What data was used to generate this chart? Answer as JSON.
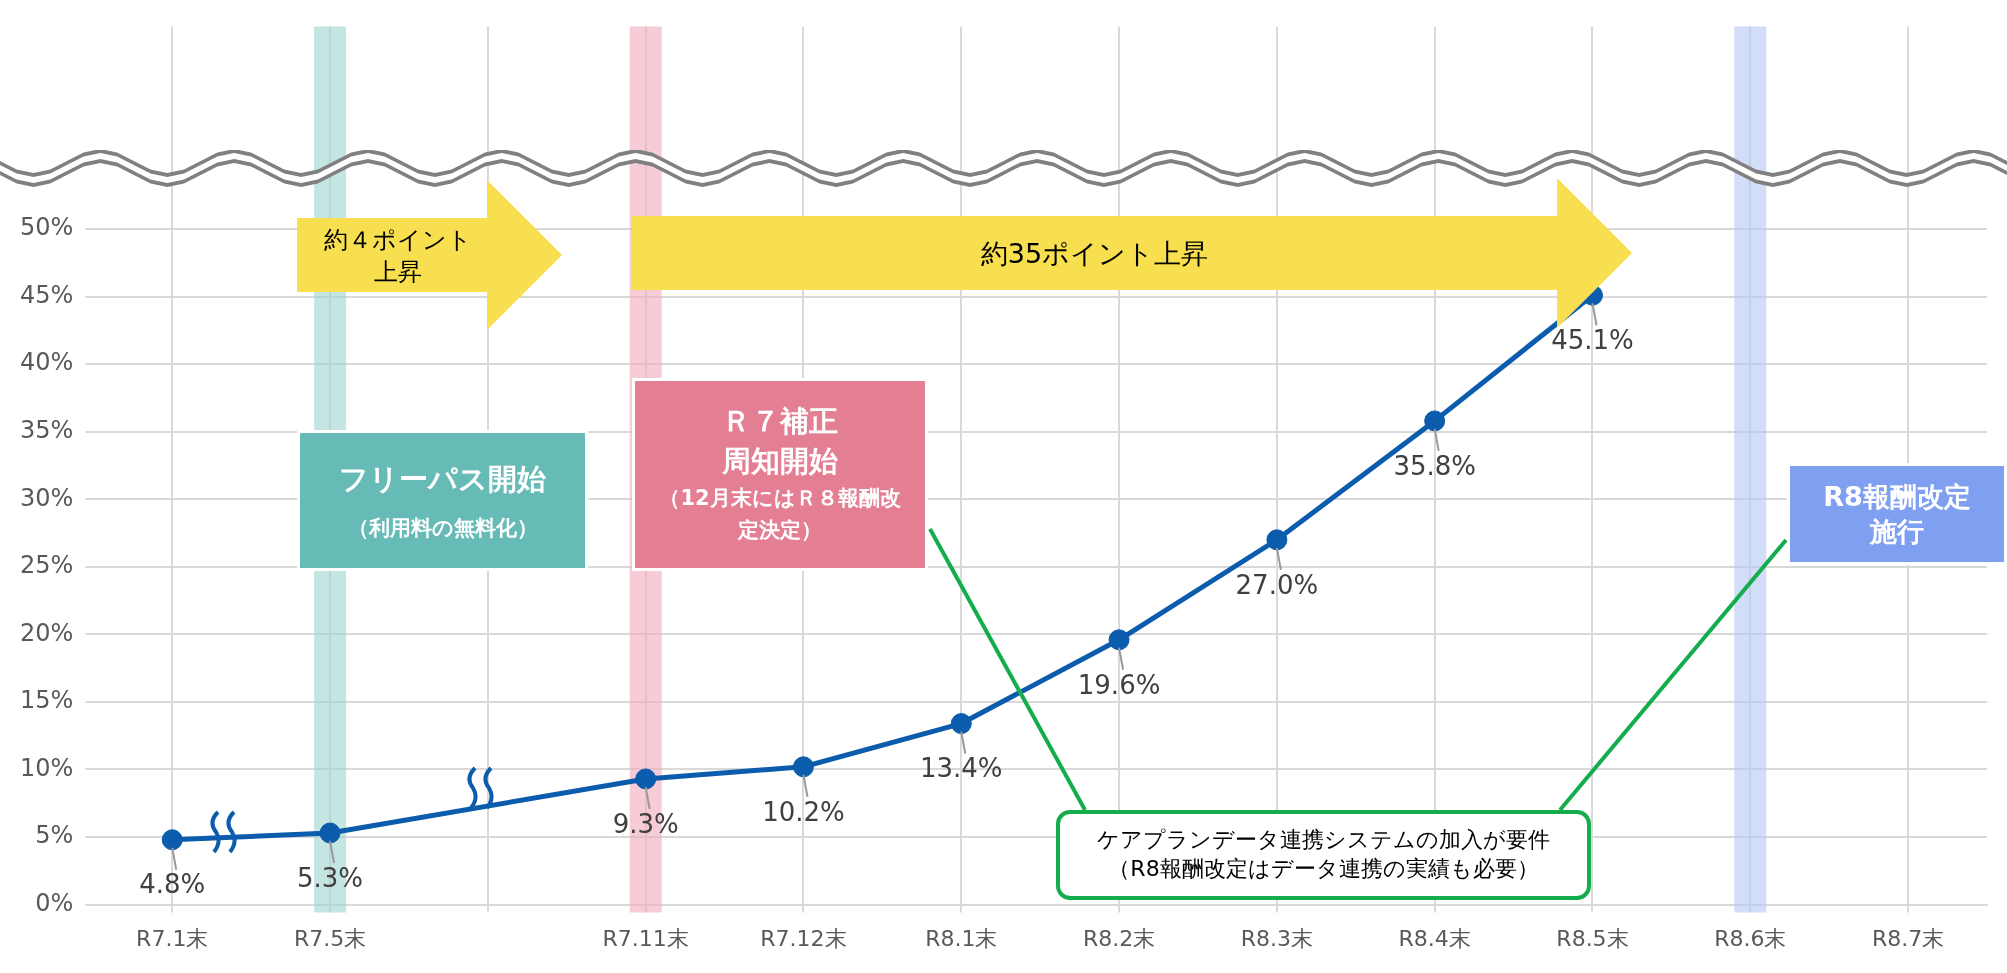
{
  "chart_data": {
    "type": "line",
    "categories": [
      "R7.1末",
      "R7.5末",
      null,
      "R7.11末",
      "R7.12末",
      "R8.1末",
      "R8.2末",
      "R8.3末",
      "R8.4末",
      "R8.5末",
      "R8.6末",
      "R8.7末"
    ],
    "series": [
      {
        "color": "#0b5cad",
        "values": [
          4.8,
          5.3,
          null,
          9.3,
          10.2,
          13.4,
          19.6,
          27.0,
          35.8,
          45.1,
          null,
          null
        ],
        "value_labels": [
          "4.8%",
          "5.3%",
          null,
          "9.3%",
          "10.2%",
          "13.4%",
          "19.6%",
          "27.0%",
          "35.8%",
          "45.1%",
          null,
          null
        ]
      }
    ],
    "ylim": [
      0,
      65
    ],
    "yticks": [
      {
        "value": 0,
        "label": "0%"
      },
      {
        "value": 5,
        "label": "5%"
      },
      {
        "value": 10,
        "label": "10%"
      },
      {
        "value": 15,
        "label": "15%"
      },
      {
        "value": 20,
        "label": "20%"
      },
      {
        "value": 25,
        "label": "25%"
      },
      {
        "value": 30,
        "label": "30%"
      },
      {
        "value": 35,
        "label": "35%"
      },
      {
        "value": 40,
        "label": "40%"
      },
      {
        "value": 45,
        "label": "45%"
      },
      {
        "value": 50,
        "label": "50%"
      }
    ],
    "grid": true,
    "legend": false,
    "marker": "circle",
    "line_style": "solid",
    "ref_lines": [
      {
        "axis": "x",
        "value": "R7.5末",
        "color": "#9fd3d1"
      },
      {
        "axis": "x",
        "value": "R7.11末",
        "color": "#f0aabb"
      },
      {
        "axis": "x",
        "value": "R8.6末",
        "color": "#b4c6f4"
      }
    ],
    "annotations": [
      "約４ポイント上昇",
      "約35ポイント上昇",
      "フリーパス開始",
      "（利用料の無料化）",
      "Ｒ７補正",
      "周知開始",
      "（12月末にはＲ８報酬改定決定）",
      "R8報酬改定施行",
      "ケアプランデータ連携システムの加入が要件",
      "（R8報酬改定はデータ連携の実績も必要）"
    ]
  }
}
